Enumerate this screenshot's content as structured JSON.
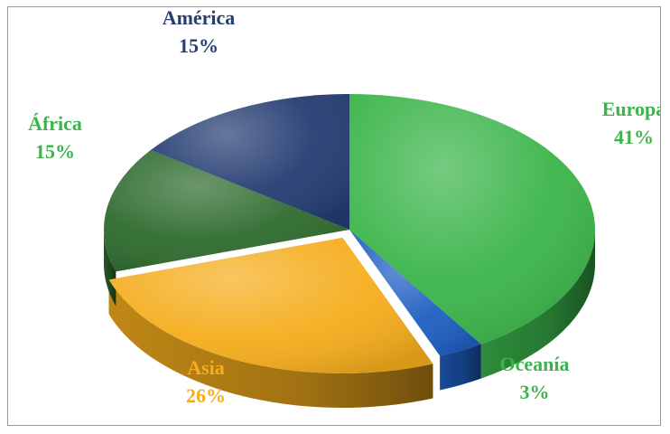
{
  "chart_data": {
    "type": "pie",
    "title": "",
    "slices": [
      {
        "label": "Europa",
        "value": 41,
        "value_label": "41%",
        "color": "#3bb54a",
        "label_color": "#3bb54a"
      },
      {
        "label": "Oceanía",
        "value": 3,
        "value_label": "3%",
        "color": "#1f5fc2",
        "label_color": "#3bb54a"
      },
      {
        "label": "Asia",
        "value": 26,
        "value_label": "26%",
        "color": "#f5ad1c",
        "label_color": "#f5ad1c"
      },
      {
        "label": "África",
        "value": 15,
        "value_label": "15%",
        "color": "#2e6b2e",
        "label_color": "#3bb54a"
      },
      {
        "label": "América",
        "value": 15,
        "value_label": "15%",
        "color": "#253d72",
        "label_color": "#253d72"
      }
    ],
    "three_d": true,
    "exploded_slice": "Asia",
    "legend": "none",
    "data_labels": "outside, name and percent"
  }
}
